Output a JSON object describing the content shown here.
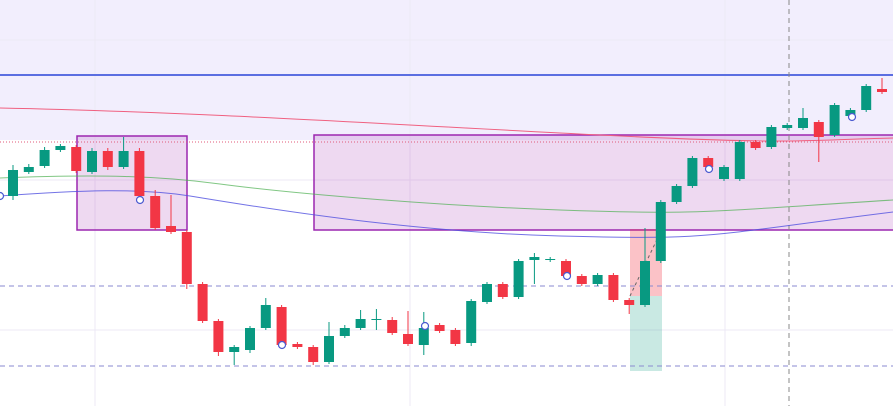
{
  "chart_data": {
    "type": "candlestick",
    "ylim": [
      0,
      406
    ],
    "up_color": "#089981",
    "down_color": "#f23645",
    "series": {
      "open": [
        210,
        234,
        240,
        256,
        259,
        234,
        255,
        239,
        255,
        210,
        180,
        174,
        122,
        85,
        54,
        56,
        78,
        99,
        62,
        59,
        44,
        70,
        78,
        86,
        86,
        72,
        61,
        81,
        76,
        63,
        104,
        122,
        109,
        146,
        146,
        145,
        130,
        122,
        131,
        106,
        101,
        145,
        204,
        220,
        248,
        227,
        227,
        264,
        259,
        278,
        278,
        284,
        271,
        290,
        296,
        317
      ],
      "high": [
        241,
        242,
        259,
        262,
        261,
        258,
        258,
        269,
        258,
        216,
        211,
        176,
        124,
        87,
        61,
        80,
        108,
        101,
        64,
        61,
        84,
        81,
        96,
        97,
        89,
        95,
        94,
        83,
        78,
        107,
        124,
        124,
        147,
        153,
        149,
        147,
        132,
        133,
        133,
        108,
        178,
        206,
        222,
        250,
        250,
        241,
        266,
        266,
        281,
        283,
        298,
        286,
        303,
        298,
        322,
        328
      ],
      "low": [
        206,
        232,
        238,
        254,
        233,
        232,
        236,
        237,
        208,
        176,
        172,
        117,
        83,
        50,
        41,
        53,
        76,
        58,
        57,
        41,
        42,
        68,
        76,
        76,
        71,
        60,
        51,
        73,
        60,
        60,
        102,
        107,
        107,
        122,
        144,
        128,
        120,
        120,
        104,
        92,
        99,
        143,
        202,
        218,
        237,
        225,
        225,
        256,
        257,
        276,
        276,
        244,
        269,
        288,
        294,
        312
      ],
      "close": [
        236,
        239,
        256,
        260,
        235,
        255,
        239,
        255,
        210,
        178,
        174,
        122,
        85,
        54,
        59,
        78,
        101,
        61,
        59,
        44,
        70,
        78,
        87,
        87,
        73,
        62,
        78,
        75,
        62,
        105,
        122,
        109,
        145,
        149,
        147,
        130,
        122,
        131,
        106,
        101,
        145,
        204,
        220,
        248,
        239,
        239,
        264,
        258,
        279,
        281,
        288,
        269,
        301,
        296,
        320,
        314
      ]
    }
  }
}
